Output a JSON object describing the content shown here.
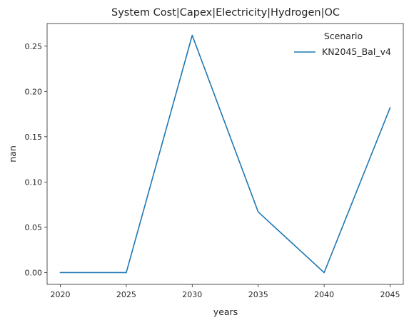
{
  "chart_data": {
    "type": "line",
    "title": "System Cost|Capex|Electricity|Hydrogen|OC",
    "xlabel": "years",
    "ylabel": "nan",
    "x": [
      2020,
      2025,
      2030,
      2035,
      2040,
      2045
    ],
    "series": [
      {
        "name": "KN2045_Bal_v4",
        "values": [
          0.0,
          0.0,
          0.262,
          0.067,
          0.0,
          0.182
        ],
        "color": "#1f77b4"
      }
    ],
    "xlim": [
      2019,
      2046
    ],
    "ylim": [
      -0.013,
      0.275
    ],
    "xticks": [
      2020,
      2025,
      2030,
      2035,
      2040,
      2045
    ],
    "xtick_labels": [
      "2020",
      "2025",
      "2030",
      "2035",
      "2040",
      "2045"
    ],
    "yticks": [
      0.0,
      0.05,
      0.1,
      0.15,
      0.2,
      0.25
    ],
    "ytick_labels": [
      "0.00",
      "0.05",
      "0.10",
      "0.15",
      "0.20",
      "0.25"
    ],
    "grid": false,
    "legend": {
      "title": "Scenario",
      "placement": "top-right"
    }
  }
}
